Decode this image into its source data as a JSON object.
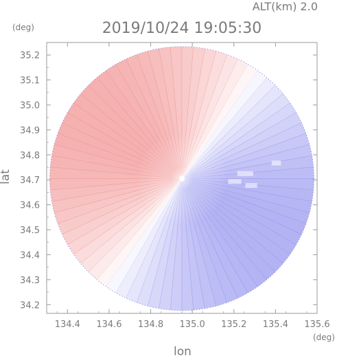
{
  "chart_data": {
    "type": "heatmap",
    "title": "2019/10/24 19:05:30",
    "altitude_label": "ALT(km) 2.0",
    "xlabel": "lon",
    "ylabel": "lat",
    "x_unit": "(deg)",
    "y_unit": "(deg)",
    "xlim": [
      134.3,
      135.6
    ],
    "ylim": [
      34.165,
      35.25
    ],
    "x_ticks": [
      134.4,
      134.6,
      134.8,
      135.0,
      135.2,
      135.4,
      135.6
    ],
    "x_tick_labels": [
      "134.4",
      "134.6",
      "134.8",
      "135.0",
      "135.2",
      "135.4",
      "135.6"
    ],
    "y_ticks": [
      35.2,
      35.1,
      35.0,
      34.9,
      34.8,
      34.7,
      34.6,
      34.5,
      34.4,
      34.3,
      34.2
    ],
    "y_tick_labels": [
      "35.2",
      "35.1",
      "35.0",
      "34.9",
      "34.8",
      "34.7",
      "34.6",
      "34.5",
      "34.4",
      "34.3",
      "34.2"
    ],
    "radar_center": {
      "lon": 134.95,
      "lat": 34.705
    },
    "radar_range_deg_lon": 0.635,
    "colors": {
      "positive": "#f29a9a",
      "negative": "#9e9ef0",
      "neutral": "#ffffff"
    },
    "grid": false
  }
}
